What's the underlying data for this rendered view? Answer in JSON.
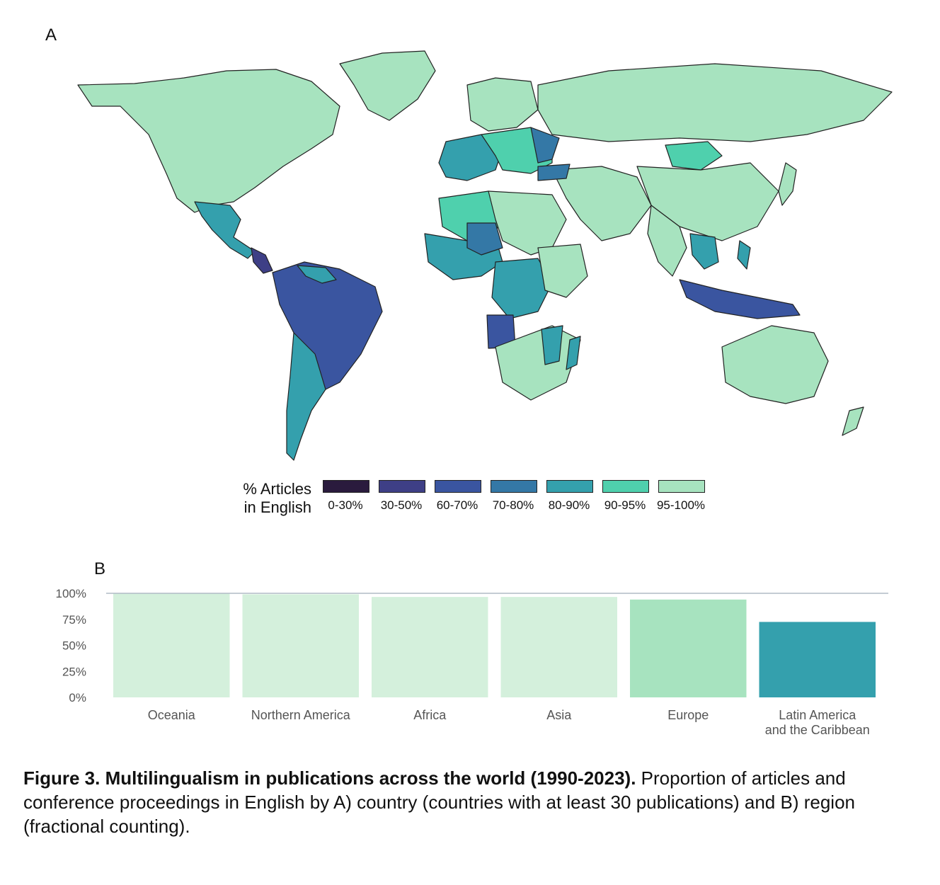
{
  "panel_a_label": "A",
  "panel_b_label": "B",
  "legend": {
    "title_line1": "% Articles",
    "title_line2": "in English",
    "items": [
      {
        "label": "0-30%",
        "color": "#2a1b3d"
      },
      {
        "label": "30-50%",
        "color": "#3e3f86"
      },
      {
        "label": "60-70%",
        "color": "#3a55a0"
      },
      {
        "label": "70-80%",
        "color": "#3478a6"
      },
      {
        "label": "80-90%",
        "color": "#34a0ad"
      },
      {
        "label": "90-95%",
        "color": "#4fd0ad"
      },
      {
        "label": "95-100%",
        "color": "#a7e3bf"
      }
    ]
  },
  "map": {
    "ocean_color": "#ffffff",
    "border_color": "#222222"
  },
  "chart_data": {
    "type": "bar",
    "categories": [
      "Oceania",
      "Northern America",
      "Africa",
      "Asia",
      "Europe",
      "Latin America and the Caribbean"
    ],
    "values": [
      99.5,
      99.0,
      96.5,
      96.5,
      94.0,
      72.5
    ],
    "bar_colors": [
      "#d4f0dc",
      "#d4f0dc",
      "#d4f0dc",
      "#d4f0dc",
      "#a7e3bf",
      "#34a0ad"
    ],
    "ylim": [
      0,
      100
    ],
    "yticks": [
      "0%",
      "25%",
      "50%",
      "75%",
      "100%"
    ],
    "title": "",
    "xlabel": "",
    "ylabel": ""
  },
  "caption": {
    "bold": "Figure 3. Multilingualism in publications across the world (1990-2023).",
    "text": " Proportion of articles and conference proceedings in English by A) country (countries with at least 30 publications) and B) region (fractional counting)."
  }
}
